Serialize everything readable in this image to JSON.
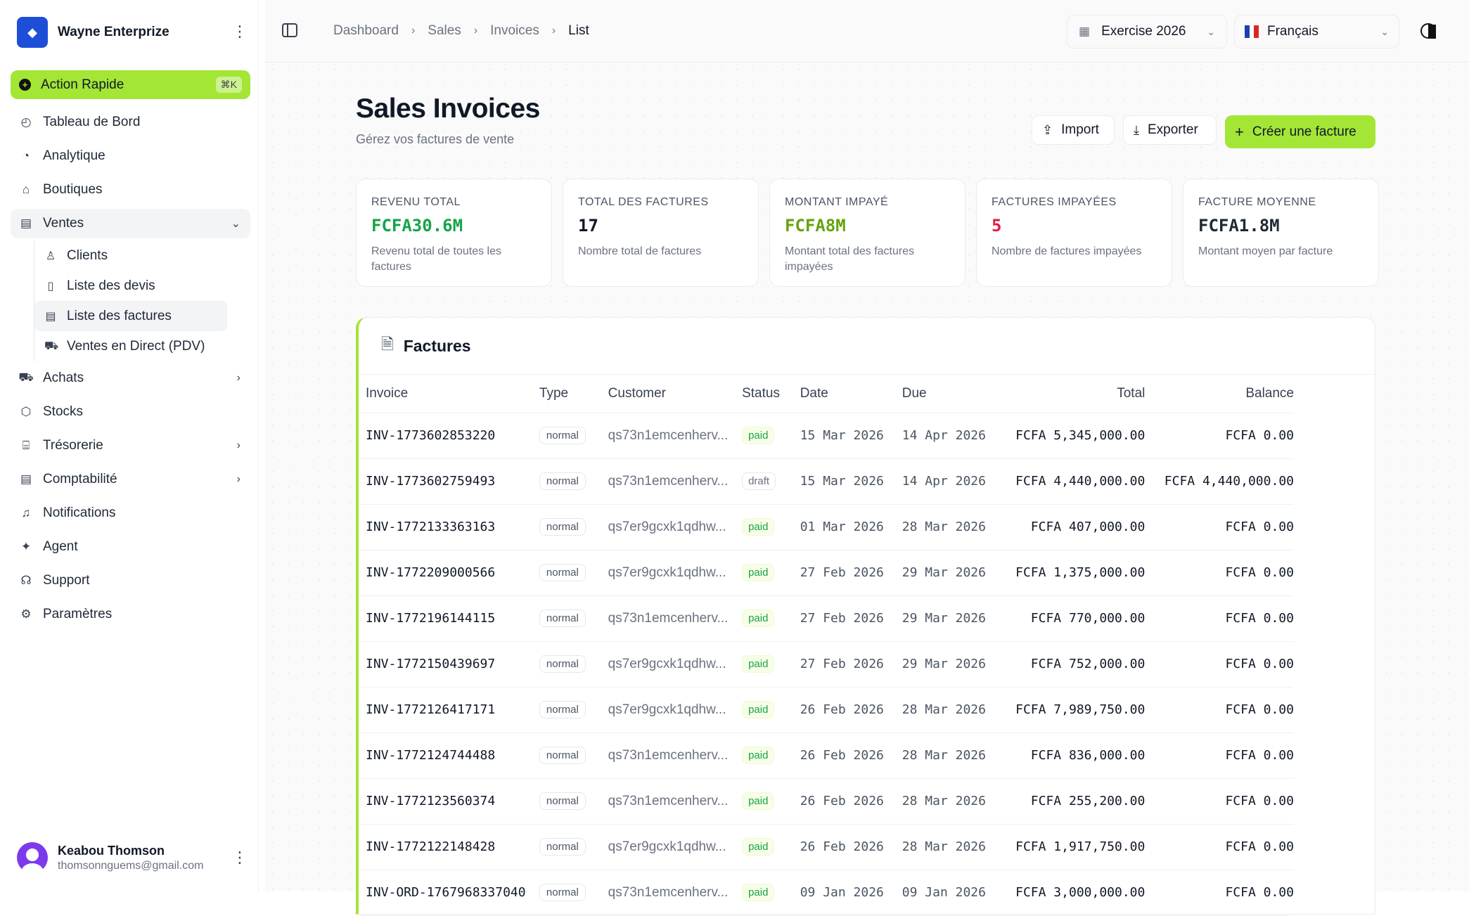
{
  "brand": {
    "name": "Wayne Enterprize"
  },
  "quick_action": {
    "label": "Action Rapide",
    "shortcut": "⌘K"
  },
  "nav": {
    "dashboard": "Tableau de Bord",
    "analytics": "Analytique",
    "shops": "Boutiques",
    "sales": "Ventes",
    "sales_sub": {
      "clients": "Clients",
      "quotes": "Liste des devis",
      "invoices": "Liste des factures",
      "pos": "Ventes en Direct (PDV)"
    },
    "purchases": "Achats",
    "stocks": "Stocks",
    "treasury": "Trésorerie",
    "accounting": "Comptabilité",
    "notifications": "Notifications",
    "agent": "Agent",
    "support": "Support",
    "settings": "Paramètres"
  },
  "user": {
    "name": "Keabou Thomson",
    "email": "thomsonnguems@gmail.com"
  },
  "breadcrumb": [
    "Dashboard",
    "Sales",
    "Invoices",
    "List"
  ],
  "exercise": "Exercise 2026",
  "language": "Français",
  "page": {
    "title": "Sales Invoices",
    "subtitle": "Gérez vos factures de vente"
  },
  "actions": {
    "import": "Import",
    "export": "Exporter",
    "create": "Créer une facture"
  },
  "stats": [
    {
      "label": "REVENU TOTAL",
      "value": "FCFA30.6M",
      "desc": "Revenu total de toutes les factures",
      "color": "#16a34a"
    },
    {
      "label": "TOTAL DES FACTURES",
      "value": "17",
      "desc": "Nombre total de factures",
      "color": "#111827"
    },
    {
      "label": "MONTANT IMPAYÉ",
      "value": "FCFA8M",
      "desc": "Montant total des factures impayées",
      "color": "#65a30d"
    },
    {
      "label": "FACTURES IMPAYÉES",
      "value": "5",
      "desc": "Nombre de factures impayées",
      "color": "#e11d48"
    },
    {
      "label": "FACTURE MOYENNE",
      "value": "FCFA1.8M",
      "desc": "Montant moyen par facture",
      "color": "#1f2937"
    }
  ],
  "invoices_card": {
    "title": "Factures",
    "columns": [
      "Invoice",
      "Type",
      "Customer",
      "Status",
      "Date",
      "Due",
      "Total",
      "Balance"
    ],
    "rows": [
      {
        "invoice": "INV-1773602853220",
        "type": "normal",
        "customer": "qs73n1emcenherv...",
        "status": "paid",
        "date": "15 Mar 2026",
        "due": "14 Apr 2026",
        "total": "FCFA 5,345,000.00",
        "balance": "FCFA 0.00"
      },
      {
        "invoice": "INV-1773602759493",
        "type": "normal",
        "customer": "qs73n1emcenherv...",
        "status": "draft",
        "date": "15 Mar 2026",
        "due": "14 Apr 2026",
        "total": "FCFA 4,440,000.00",
        "balance": "FCFA 4,440,000.00"
      },
      {
        "invoice": "INV-1772133363163",
        "type": "normal",
        "customer": "qs7er9gcxk1qdhw...",
        "status": "paid",
        "date": "01 Mar 2026",
        "due": "28 Mar 2026",
        "total": "FCFA 407,000.00",
        "balance": "FCFA 0.00"
      },
      {
        "invoice": "INV-1772209000566",
        "type": "normal",
        "customer": "qs7er9gcxk1qdhw...",
        "status": "paid",
        "date": "27 Feb 2026",
        "due": "29 Mar 2026",
        "total": "FCFA 1,375,000.00",
        "balance": "FCFA 0.00"
      },
      {
        "invoice": "INV-1772196144115",
        "type": "normal",
        "customer": "qs73n1emcenherv...",
        "status": "paid",
        "date": "27 Feb 2026",
        "due": "29 Mar 2026",
        "total": "FCFA 770,000.00",
        "balance": "FCFA 0.00"
      },
      {
        "invoice": "INV-1772150439697",
        "type": "normal",
        "customer": "qs7er9gcxk1qdhw...",
        "status": "paid",
        "date": "27 Feb 2026",
        "due": "29 Mar 2026",
        "total": "FCFA 752,000.00",
        "balance": "FCFA 0.00"
      },
      {
        "invoice": "INV-1772126417171",
        "type": "normal",
        "customer": "qs7er9gcxk1qdhw...",
        "status": "paid",
        "date": "26 Feb 2026",
        "due": "28 Mar 2026",
        "total": "FCFA 7,989,750.00",
        "balance": "FCFA 0.00"
      },
      {
        "invoice": "INV-1772124744488",
        "type": "normal",
        "customer": "qs73n1emcenherv...",
        "status": "paid",
        "date": "26 Feb 2026",
        "due": "28 Mar 2026",
        "total": "FCFA 836,000.00",
        "balance": "FCFA 0.00"
      },
      {
        "invoice": "INV-1772123560374",
        "type": "normal",
        "customer": "qs73n1emcenherv...",
        "status": "paid",
        "date": "26 Feb 2026",
        "due": "28 Mar 2026",
        "total": "FCFA 255,200.00",
        "balance": "FCFA 0.00"
      },
      {
        "invoice": "INV-1772122148428",
        "type": "normal",
        "customer": "qs7er9gcxk1qdhw...",
        "status": "paid",
        "date": "26 Feb 2026",
        "due": "28 Mar 2026",
        "total": "FCFA 1,917,750.00",
        "balance": "FCFA 0.00"
      },
      {
        "invoice": "INV-ORD-1767968337040",
        "type": "normal",
        "customer": "qs73n1emcenherv...",
        "status": "paid",
        "date": "09 Jan 2026",
        "due": "09 Jan 2026",
        "total": "FCFA 3,000,000.00",
        "balance": "FCFA 0.00"
      }
    ]
  },
  "colors": {
    "accent": "#a3e635",
    "paid": "#16a34a",
    "brand": "#1d4ed8"
  }
}
